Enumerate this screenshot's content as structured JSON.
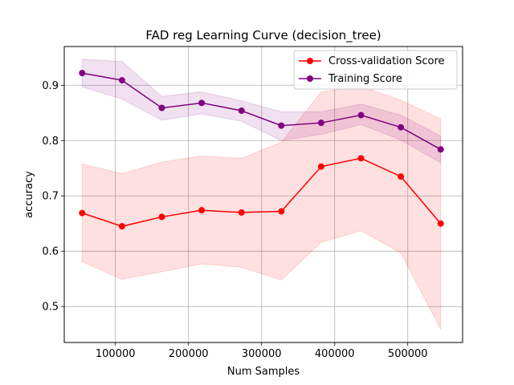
{
  "chart_data": {
    "type": "line",
    "title": "FAD reg Learning Curve (decision_tree)",
    "xlabel": "Num Samples",
    "ylabel": "accuracy",
    "xlim": [
      30000,
      575000
    ],
    "ylim": [
      0.435,
      0.97
    ],
    "xticks": [
      100000,
      200000,
      300000,
      400000,
      500000
    ],
    "xtick_labels": [
      "100000",
      "200000",
      "300000",
      "400000",
      "500000"
    ],
    "yticks": [
      0.5,
      0.6,
      0.7,
      0.8,
      0.9
    ],
    "ytick_labels": [
      "0.5",
      "0.6",
      "0.7",
      "0.8",
      "0.9"
    ],
    "grid": true,
    "legend_position": "upper right",
    "x": [
      54500,
      109000,
      163500,
      218000,
      272500,
      327000,
      381500,
      436000,
      490500,
      545000
    ],
    "series": [
      {
        "name": "Cross-validation Score",
        "color": "#ff0000",
        "band_color": "#ff0000",
        "values": [
          0.669,
          0.645,
          0.662,
          0.674,
          0.67,
          0.672,
          0.753,
          0.768,
          0.735,
          0.65
        ],
        "band_upper": [
          0.758,
          0.74,
          0.761,
          0.772,
          0.768,
          0.797,
          0.888,
          0.898,
          0.873,
          0.839
        ],
        "band_lower": [
          0.581,
          0.549,
          0.563,
          0.577,
          0.571,
          0.548,
          0.616,
          0.637,
          0.597,
          0.459
        ]
      },
      {
        "name": "Training Score",
        "color": "#800080",
        "band_color": "#800080",
        "values": [
          0.922,
          0.909,
          0.859,
          0.868,
          0.854,
          0.827,
          0.832,
          0.846,
          0.824,
          0.784
        ],
        "band_upper": [
          0.947,
          0.943,
          0.88,
          0.888,
          0.872,
          0.852,
          0.852,
          0.866,
          0.846,
          0.808
        ],
        "band_lower": [
          0.897,
          0.875,
          0.837,
          0.848,
          0.835,
          0.8,
          0.811,
          0.829,
          0.801,
          0.76
        ]
      }
    ]
  }
}
